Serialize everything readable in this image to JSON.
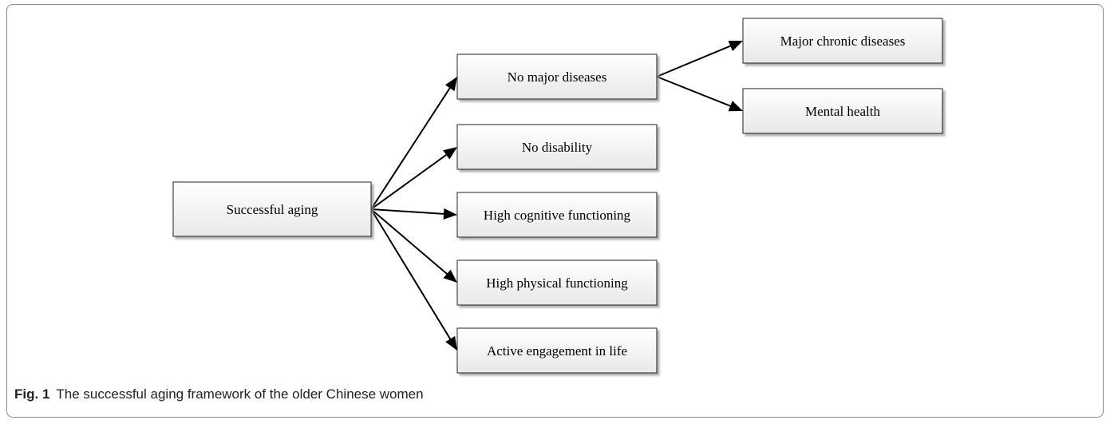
{
  "diagram": {
    "nodes": {
      "root": "Successful aging",
      "no_major_diseases": "No major diseases",
      "no_disability": "No disability",
      "high_cognitive": "High cognitive functioning",
      "high_physical": "High physical functioning",
      "active_engagement": "Active engagement in life",
      "major_chronic": "Major chronic diseases",
      "mental_health": "Mental health"
    },
    "edges": [
      [
        "root",
        "no_major_diseases"
      ],
      [
        "root",
        "no_disability"
      ],
      [
        "root",
        "high_cognitive"
      ],
      [
        "root",
        "high_physical"
      ],
      [
        "root",
        "active_engagement"
      ],
      [
        "no_major_diseases",
        "major_chronic"
      ],
      [
        "no_major_diseases",
        "mental_health"
      ]
    ]
  },
  "caption": {
    "label": "Fig. 1",
    "text": "The successful aging framework of the older Chinese women"
  }
}
